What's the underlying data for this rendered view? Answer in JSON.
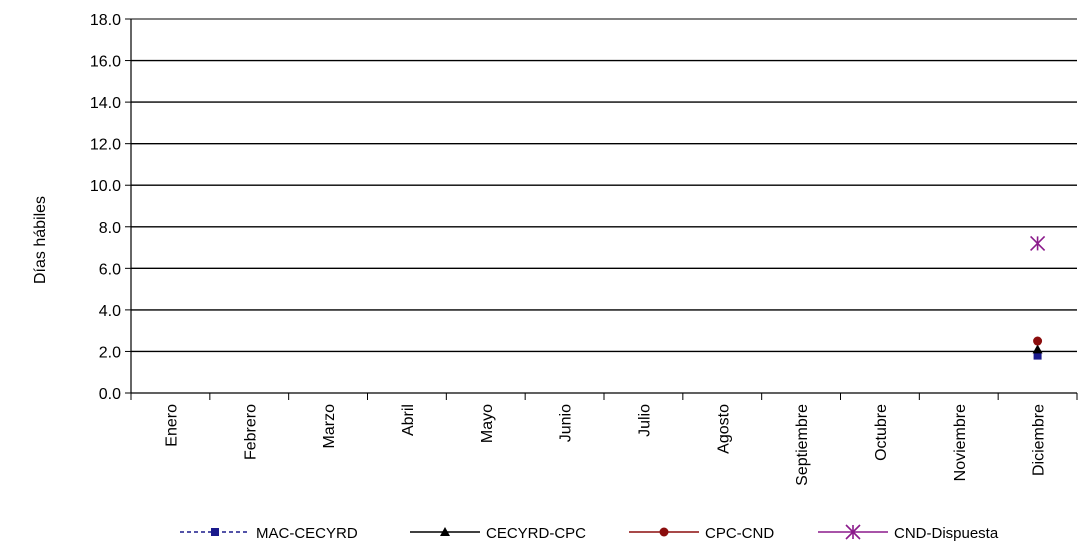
{
  "chart_data": {
    "type": "line",
    "ylabel": "Días hábiles",
    "xlabel": "",
    "title": "",
    "categories": [
      "Enero",
      "Febrero",
      "Marzo",
      "Abril",
      "Mayo",
      "Junio",
      "Julio",
      "Agosto",
      "Septiembre",
      "Octubre",
      "Noviembre",
      "Diciembre"
    ],
    "ylim": [
      0,
      18
    ],
    "yticks": [
      "0.0",
      "2.0",
      "4.0",
      "6.0",
      "8.0",
      "10.0",
      "12.0",
      "14.0",
      "16.0",
      "18.0"
    ],
    "grid": true,
    "legend_position": "bottom",
    "series": [
      {
        "name": "MAC-CECYRD",
        "color": "#1a1a8c",
        "marker": "square",
        "dash": true,
        "values": [
          null,
          null,
          null,
          null,
          null,
          null,
          null,
          null,
          null,
          null,
          null,
          1.8
        ]
      },
      {
        "name": "CECYRD-CPC",
        "color": "#000000",
        "marker": "triangle",
        "dash": false,
        "values": [
          null,
          null,
          null,
          null,
          null,
          null,
          null,
          null,
          null,
          null,
          null,
          2.1
        ]
      },
      {
        "name": "CPC-CND",
        "color": "#8b0d0d",
        "marker": "circle",
        "dash": false,
        "values": [
          null,
          null,
          null,
          null,
          null,
          null,
          null,
          null,
          null,
          null,
          null,
          2.5
        ]
      },
      {
        "name": "CND-Dispuesta",
        "color": "#8b1a8b",
        "marker": "star",
        "dash": false,
        "values": [
          null,
          null,
          null,
          null,
          null,
          null,
          null,
          null,
          null,
          null,
          null,
          7.2
        ]
      }
    ]
  }
}
